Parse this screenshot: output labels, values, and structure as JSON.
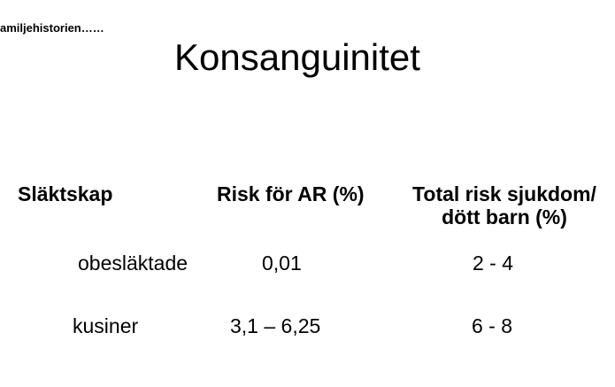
{
  "header_note": "amiljehistorien……",
  "title": "Konsanguinitet",
  "table": {
    "columns": [
      "Släktskap",
      "Risk för AR (%)",
      "Total risk sjukdom/ dött barn (%)"
    ],
    "column_total_lines": [
      "Total risk sjukdom/",
      "dött barn (%)"
    ],
    "rows": [
      [
        "obesläktade",
        "0,01",
        "2 - 4"
      ],
      [
        "kusiner",
        "3,1 – 6,25",
        "6 - 8"
      ]
    ]
  }
}
